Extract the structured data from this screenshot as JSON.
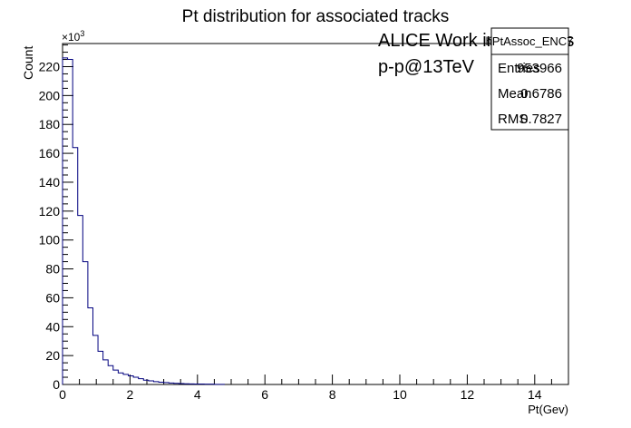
{
  "chart_data": {
    "type": "bar",
    "title": "Pt distribution for associated tracks",
    "xlabel": "Pt(Gev)",
    "ylabel": "Count",
    "y_multiplier_label": "×10",
    "y_multiplier_exp": "3",
    "xlim": [
      0,
      15
    ],
    "ylim": [
      0,
      236
    ],
    "x_ticks": [
      0,
      2,
      4,
      6,
      8,
      10,
      12,
      14
    ],
    "y_ticks": [
      0,
      20,
      40,
      60,
      80,
      100,
      120,
      140,
      160,
      180,
      200,
      220
    ],
    "bin_width": 0.15,
    "values": [
      226,
      225,
      164,
      117,
      85,
      53,
      34,
      23,
      17,
      13,
      10,
      8,
      7,
      6,
      5,
      4,
      3,
      2.5,
      2,
      1.6,
      1.3,
      1,
      0.8,
      0.6,
      0.5,
      0.4,
      0.3,
      0.3,
      0.2,
      0.2,
      0.1,
      0.1
    ],
    "line_color": "#00007f",
    "legend_placement": "top-right"
  },
  "annotations": {
    "work_label": "ALICE Work in Progress",
    "system_label": "p-p@13TeV"
  },
  "stats_box": {
    "name": "hPtAssoc_ENC7",
    "rows": [
      {
        "label": "Entries",
        "value": "953966"
      },
      {
        "label": "Mean",
        "value": "0.6786"
      },
      {
        "label": "RMS",
        "value": "0.7827"
      }
    ]
  }
}
